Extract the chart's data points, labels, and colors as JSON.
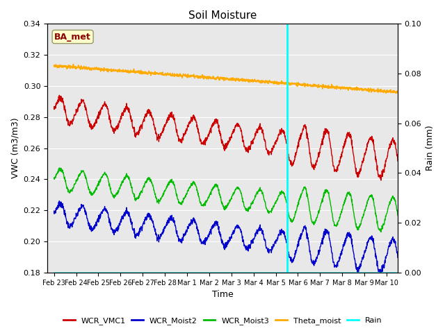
{
  "title": "Soil Moisture",
  "xlabel": "Time",
  "ylabel_left": "VWC (m3/m3)",
  "ylabel_right": "Rain (mm)",
  "ylim_left": [
    0.18,
    0.34
  ],
  "ylim_right": [
    0.0,
    0.1
  ],
  "background_color": "#e8e8e8",
  "grid_color": "#ffffff",
  "annotation_label": "BA_met",
  "annotation_color": "#8b0000",
  "annotation_bg": "#ffffcc",
  "vline_x": 10.5,
  "vline_color": "cyan",
  "tick_labels": [
    "Feb 23",
    "Feb 24",
    "Feb 25",
    "Feb 26",
    "Feb 27",
    "Feb 28",
    "Mar 1",
    "Mar 2",
    "Mar 3",
    "Mar 4",
    "Mar 5",
    "Mar 6",
    "Mar 7",
    "Mar 8",
    "Mar 9",
    "Mar 10"
  ],
  "colors": {
    "WCR_VMC1": "#cc0000",
    "WCR_Moist2": "#0000cc",
    "WCR_Moist3": "#00bb00",
    "Theta_moist": "#ffaa00",
    "Rain": "cyan"
  },
  "figsize": [
    6.4,
    4.8
  ],
  "dpi": 100
}
